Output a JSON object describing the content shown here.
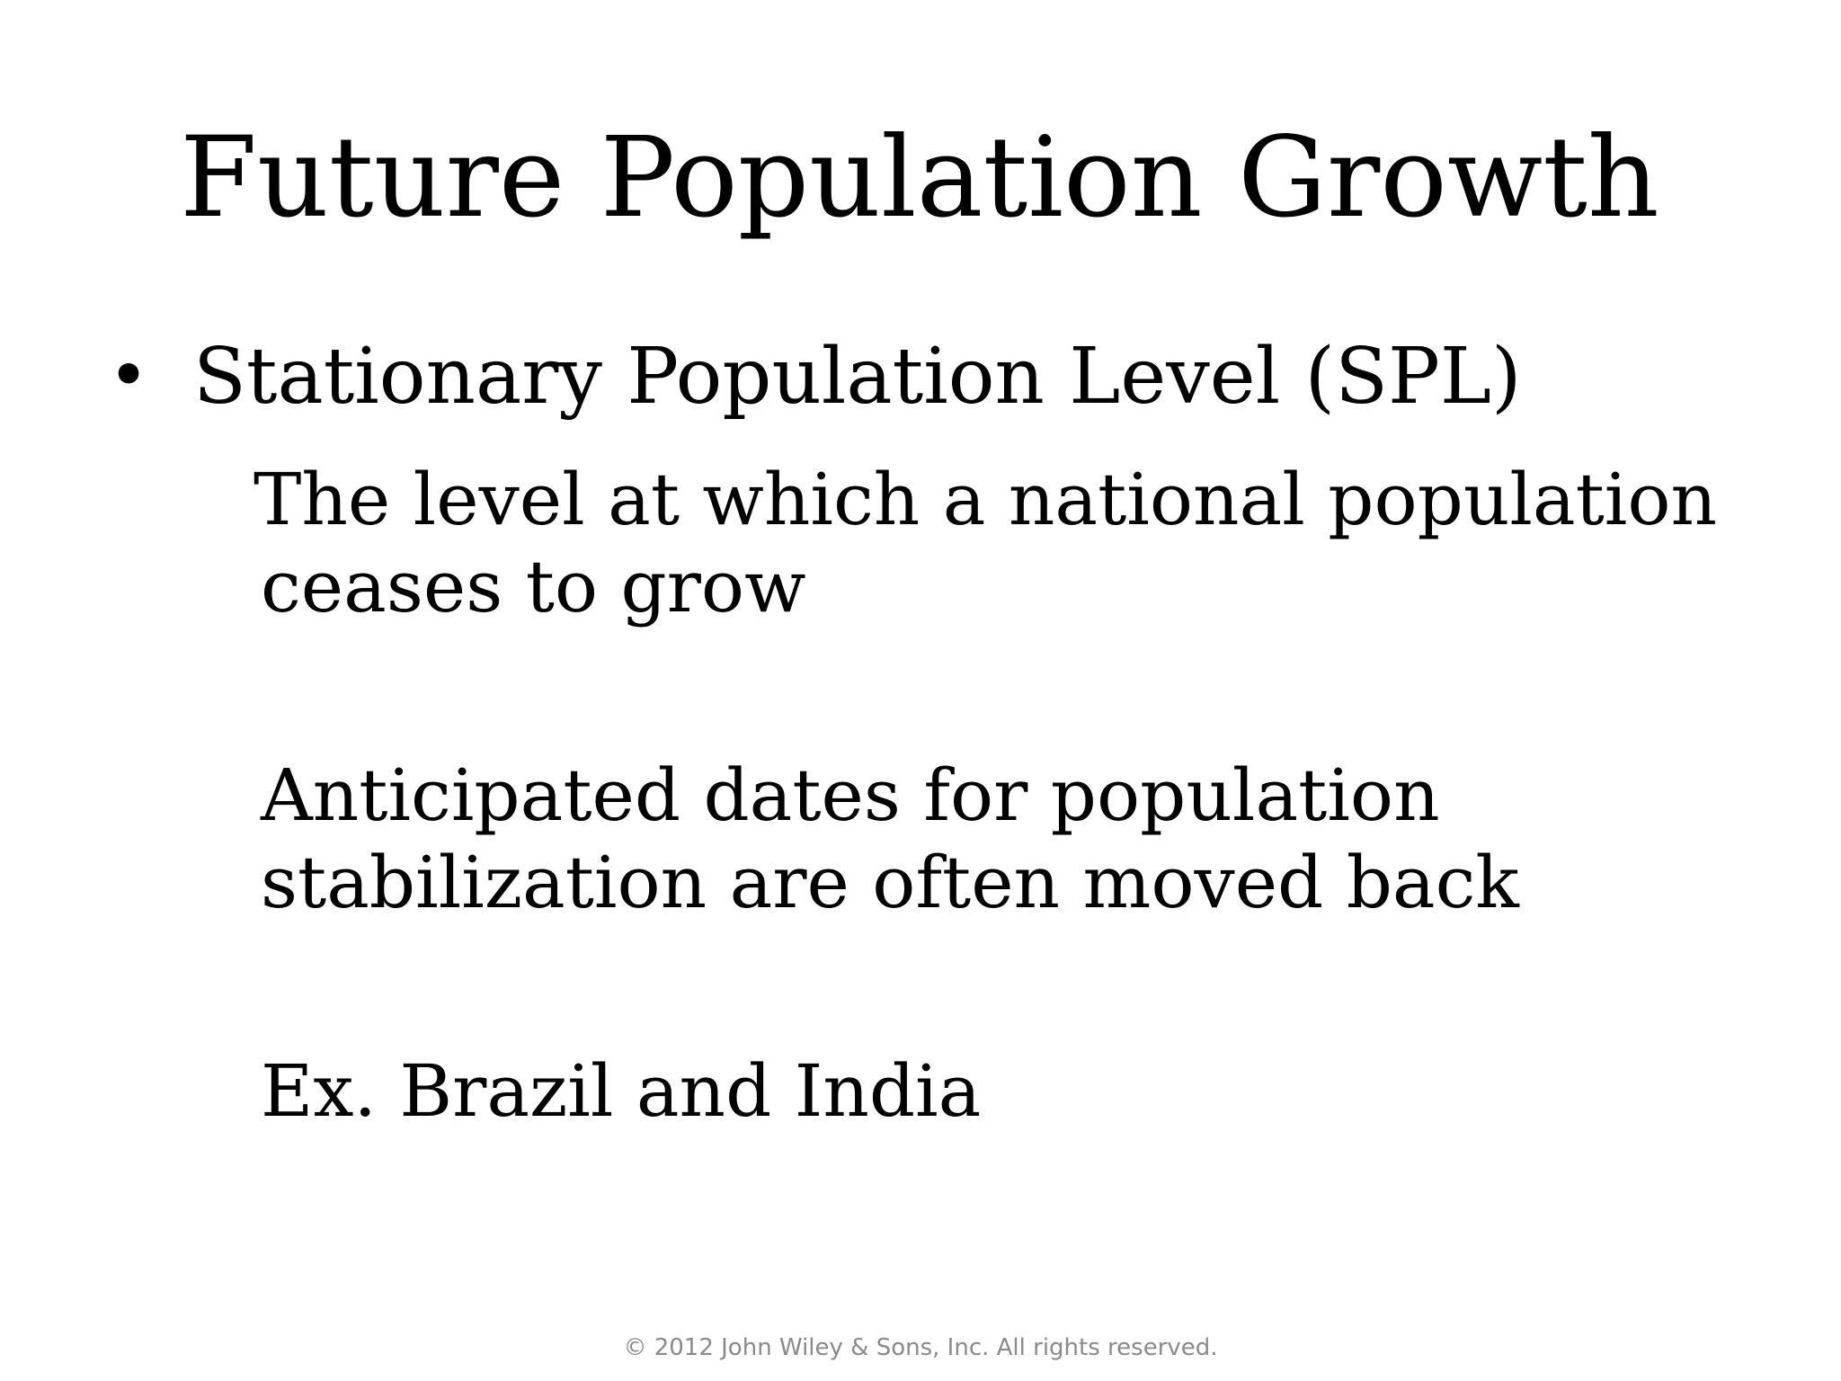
{
  "slide": {
    "title": "Future Population Growth",
    "bullet_marker": "•",
    "bullet_text": "Stationary Population Level (SPL)",
    "definition_line1": "The level at which a national population",
    "definition_line2": "ceases to grow",
    "anticipated_text": "Anticipated dates for population\nstabilization are often moved back",
    "example_text": "Ex. Brazil and India",
    "copyright": "© 2012 John Wiley & Sons, Inc. All rights reserved."
  }
}
